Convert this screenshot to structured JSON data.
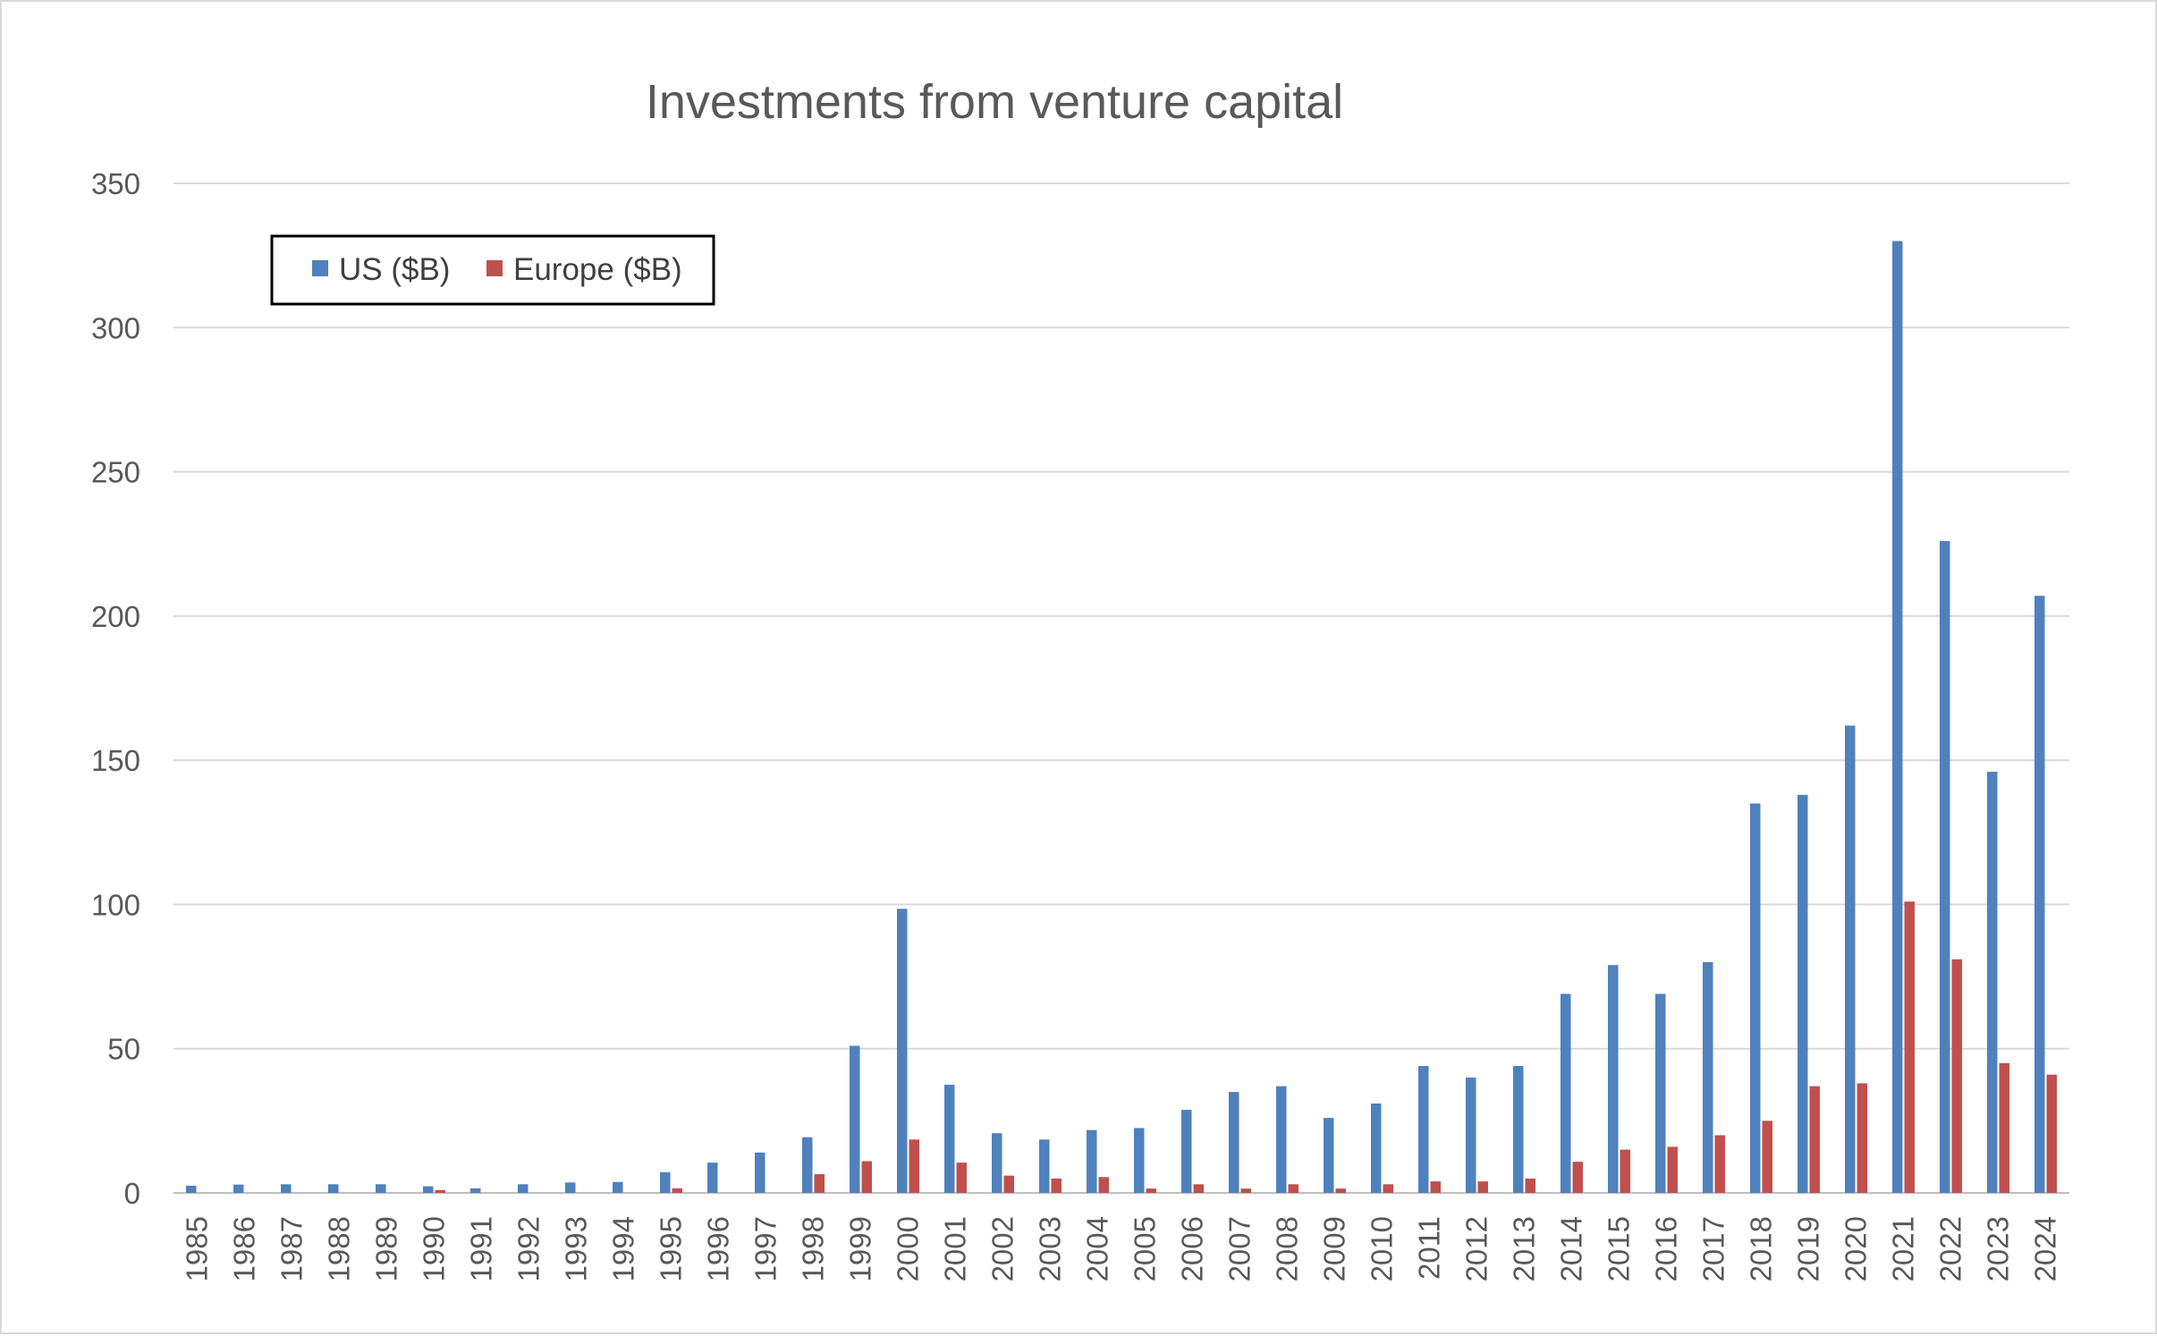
{
  "chart_data": {
    "type": "bar",
    "title": "Investments from venture capital",
    "xlabel": "",
    "ylabel": "",
    "ylim": [
      0,
      350
    ],
    "yticks": [
      "0",
      "50",
      "100",
      "150",
      "200",
      "250",
      "300",
      "350"
    ],
    "grid": true,
    "legend_position": "top-left",
    "categories": [
      "1985",
      "1986",
      "1987",
      "1988",
      "1989",
      "1990",
      "1991",
      "1992",
      "1993",
      "1994",
      "1995",
      "1996",
      "1997",
      "1998",
      "1999",
      "2000",
      "2001",
      "2002",
      "2003",
      "2004",
      "2005",
      "2006",
      "2007",
      "2008",
      "2009",
      "2010",
      "2011",
      "2012",
      "2013",
      "2014",
      "2015",
      "2016",
      "2017",
      "2018",
      "2019",
      "2020",
      "2021",
      "2022",
      "2023",
      "2024"
    ],
    "series": [
      {
        "name": "US ($B)",
        "color": "#4f81bd",
        "values": [
          2.5,
          2.9,
          3.0,
          3.0,
          3.0,
          2.3,
          1.6,
          3.0,
          3.6,
          3.8,
          7.2,
          10.5,
          14.0,
          19.3,
          51.0,
          98.5,
          37.5,
          20.7,
          18.5,
          21.8,
          22.5,
          28.8,
          35.0,
          37.0,
          26.0,
          31.0,
          44.0,
          40.0,
          44.0,
          69.0,
          79.0,
          69.0,
          80.0,
          135.0,
          138.0,
          162.0,
          330.0,
          226.0,
          146.0,
          207.0
        ]
      },
      {
        "name": "Europe ($B)",
        "color": "#c0504d",
        "values": [
          0,
          0,
          0,
          0,
          0,
          1.0,
          0,
          0,
          0,
          0,
          1.6,
          0,
          0,
          6.5,
          11.0,
          18.5,
          10.5,
          6.0,
          5.0,
          5.5,
          1.5,
          3.0,
          1.5,
          3.0,
          1.5,
          3.0,
          4.0,
          4.0,
          5.0,
          10.8,
          15.0,
          16.0,
          20.0,
          25.0,
          37.0,
          38.0,
          101.0,
          81.0,
          45.0,
          41.0
        ]
      }
    ]
  }
}
